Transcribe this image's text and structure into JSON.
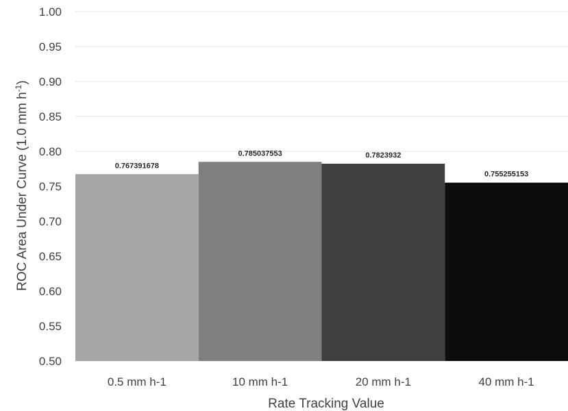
{
  "chart_data": {
    "type": "bar",
    "xlabel": "Rate Tracking Value",
    "ylabel": "ROC Area Under Curve (1.0 mm h",
    "ylabel_superscript": "-1",
    "ylabel_suffix": ")",
    "ylim": [
      0.5,
      1.0
    ],
    "yticks": [
      "0.50",
      "0.55",
      "0.60",
      "0.65",
      "0.70",
      "0.75",
      "0.80",
      "0.85",
      "0.90",
      "0.95",
      "1.00"
    ],
    "grid": true,
    "legend": "none",
    "categories": [
      "0.5 mm h-1",
      "10 mm h-1",
      "20 mm h-1",
      "40 mm h-1"
    ],
    "values": [
      0.767391678,
      0.785037553,
      0.7823932,
      0.755255153
    ],
    "data_labels": [
      "0.767391678",
      "0.785037553",
      "0.7823932",
      "0.755255153"
    ],
    "colors": [
      "#a5a5a5",
      "#7f7f7f",
      "#3f3f3f",
      "#0d0d0d"
    ]
  }
}
